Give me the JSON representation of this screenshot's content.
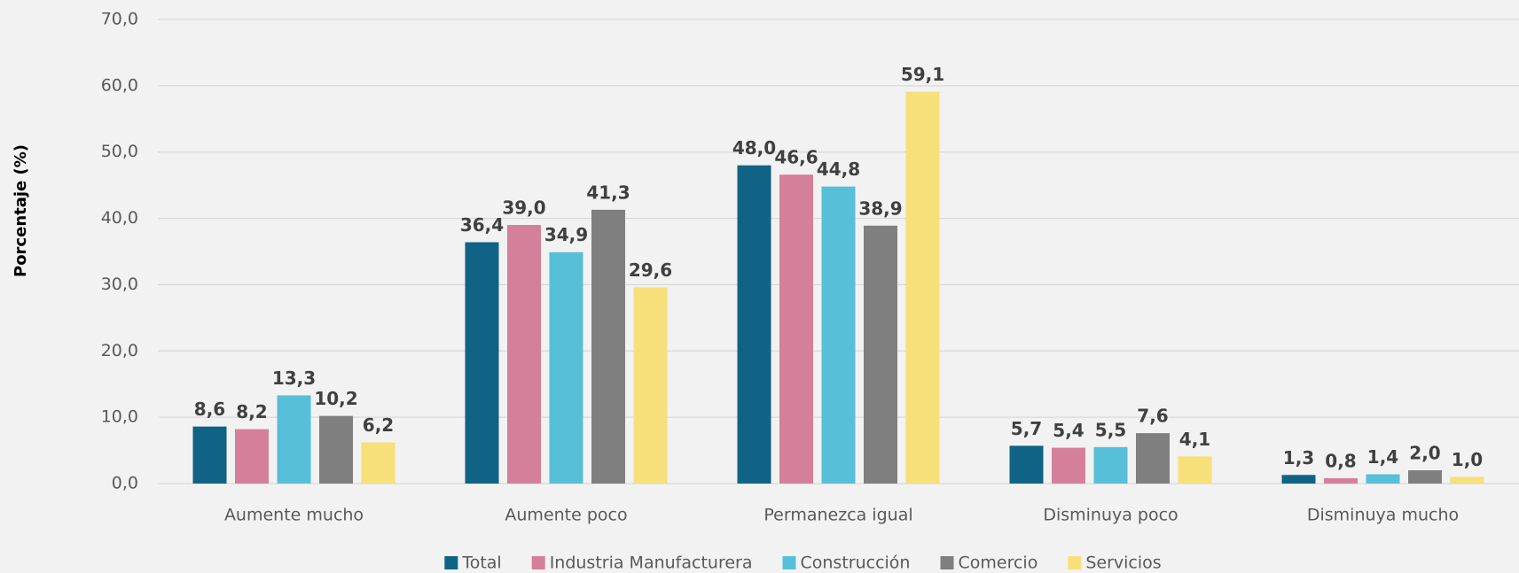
{
  "chart_data": {
    "type": "bar",
    "y_axis_label": "Porcentaje (%)",
    "categories": [
      "Aumente mucho",
      "Aumente poco",
      "Permanezca igual",
      "Disminuya poco",
      "Disminuya mucho"
    ],
    "series": [
      {
        "name": "Total",
        "color": "#106384",
        "values": [
          8.6,
          36.4,
          48.0,
          5.7,
          1.3
        ],
        "value_labels": [
          "8,6",
          "36,4",
          "48,0",
          "5,7",
          "1,3"
        ]
      },
      {
        "name": "Industria Manufacturera",
        "color": "#d4809a",
        "values": [
          8.2,
          39.0,
          46.6,
          5.4,
          0.8
        ],
        "value_labels": [
          "8,2",
          "39,0",
          "46,6",
          "5,4",
          "0,8"
        ]
      },
      {
        "name": "Construcción",
        "color": "#57bfd7",
        "values": [
          13.3,
          34.9,
          44.8,
          5.5,
          1.4
        ],
        "value_labels": [
          "13,3",
          "34,9",
          "44,8",
          "5,5",
          "1,4"
        ]
      },
      {
        "name": "Comercio",
        "color": "#7f7f7f",
        "values": [
          10.2,
          41.3,
          38.9,
          7.6,
          2.0
        ],
        "value_labels": [
          "10,2",
          "41,3",
          "38,9",
          "7,6",
          "2,0"
        ]
      },
      {
        "name": "Servicios",
        "color": "#f7e07a",
        "values": [
          6.2,
          29.6,
          59.1,
          4.1,
          1.0
        ],
        "value_labels": [
          "6,2",
          "29,6",
          "59,1",
          "4,1",
          "1,0"
        ]
      }
    ],
    "ylim": [
      0,
      70
    ],
    "yticks": [
      {
        "value": 0,
        "label": "0,0"
      },
      {
        "value": 10,
        "label": "10,0"
      },
      {
        "value": 20,
        "label": "20,0"
      },
      {
        "value": 30,
        "label": "30,0"
      },
      {
        "value": 40,
        "label": "40,0"
      },
      {
        "value": 50,
        "label": "50,0"
      },
      {
        "value": 60,
        "label": "60,0"
      },
      {
        "value": 70,
        "label": "70,0"
      }
    ],
    "grid": true,
    "legend": "bottom"
  }
}
